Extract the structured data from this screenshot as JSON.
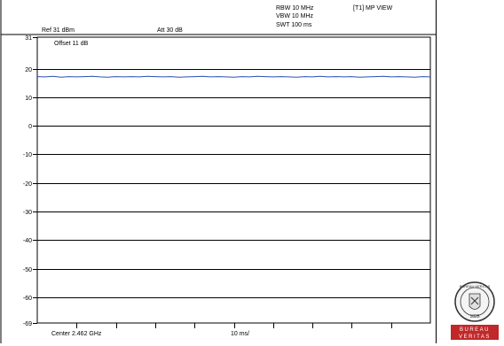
{
  "header": {
    "rbw": "RBW 10 MHz",
    "vbw": "VBW 10 MHz",
    "swt": "SWT 100 ms",
    "trace_label": "[T1] MP VIEW",
    "ref_level": "Ref 31 dBm",
    "attenuation": "Att  30 dB",
    "offset": "Offset 11 dB"
  },
  "footer": {
    "center": "Center 2.462 GHz",
    "span": "10 ms/"
  },
  "logo": {
    "top_text": "BUREAU VERITAS",
    "year": "1828",
    "band_line1": "BUREAU",
    "band_line2": "VERITAS"
  },
  "colors": {
    "trace": "#2a50b0",
    "grid": "#000000",
    "logo_band": "#c0282a"
  },
  "chart_data": {
    "type": "line",
    "title": "",
    "xlabel": "",
    "ylabel": "",
    "x_range_ms": [
      0,
      100
    ],
    "ylim": [
      -69,
      31
    ],
    "y_ticks": [
      31,
      20,
      10,
      0,
      -10,
      -20,
      -30,
      -40,
      -50,
      -60,
      -69
    ],
    "y_tick_labels": [
      "31",
      "20",
      "10",
      "0",
      "-10",
      "-20",
      "-30",
      "-40",
      "-50",
      "-60",
      "-69"
    ],
    "grid": true,
    "series": [
      {
        "x": [
          0,
          2,
          4,
          6,
          8,
          10,
          12,
          14,
          16,
          18,
          20,
          22,
          24,
          26,
          28,
          30,
          32,
          34,
          36,
          38,
          40,
          42,
          44,
          46,
          48,
          50,
          52,
          54,
          56,
          58,
          60,
          62,
          64,
          66,
          68,
          70,
          72,
          74,
          76,
          78,
          80,
          82,
          84,
          86,
          88,
          90,
          92,
          94,
          96,
          98,
          100
        ],
        "values": [
          17.2,
          17.1,
          17.3,
          17.0,
          17.2,
          17.1,
          17.2,
          17.3,
          17.1,
          17.0,
          17.2,
          17.1,
          17.2,
          17.1,
          17.3,
          17.2,
          17.1,
          17.2,
          17.0,
          17.1,
          17.2,
          17.3,
          17.1,
          17.2,
          17.1,
          17.0,
          17.2,
          17.1,
          17.3,
          17.2,
          17.1,
          17.2,
          17.1,
          17.0,
          17.2,
          17.1,
          17.3,
          17.1,
          17.2,
          17.1,
          17.2,
          17.0,
          17.1,
          17.2,
          17.3,
          17.1,
          17.2,
          17.1,
          17.0,
          17.2,
          17.1
        ]
      }
    ]
  }
}
